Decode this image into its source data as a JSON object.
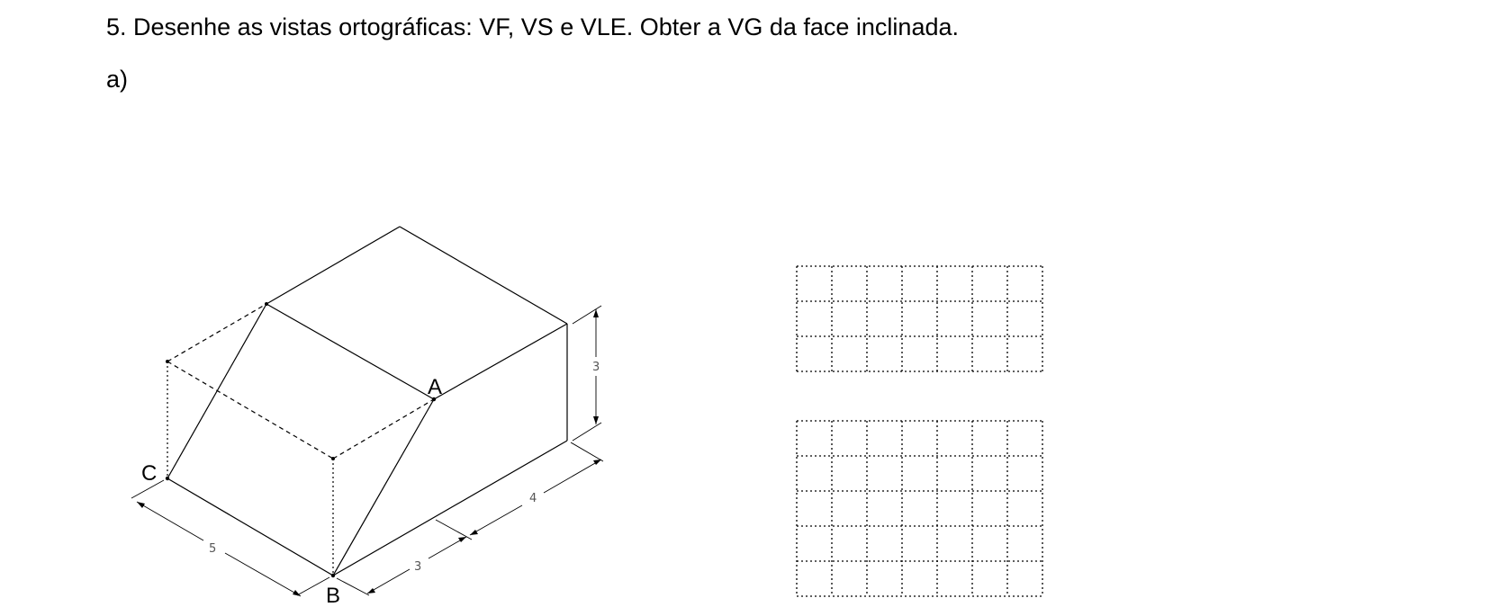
{
  "exercise": {
    "title": "5. Desenhe as vistas ortográficas: VF, VS e VLE. Obter a VG da face inclinada.",
    "item_label": "a)"
  },
  "isometric_figure": {
    "vertex_labels": {
      "A": "A",
      "B": "B",
      "C": "C"
    },
    "dimensions": {
      "width": "5",
      "height": "3",
      "depth_lower": "3",
      "depth_upper": "4"
    }
  },
  "grids": [
    {
      "rows": 3,
      "cols": 7
    },
    {
      "rows": 5,
      "cols": 7
    }
  ]
}
